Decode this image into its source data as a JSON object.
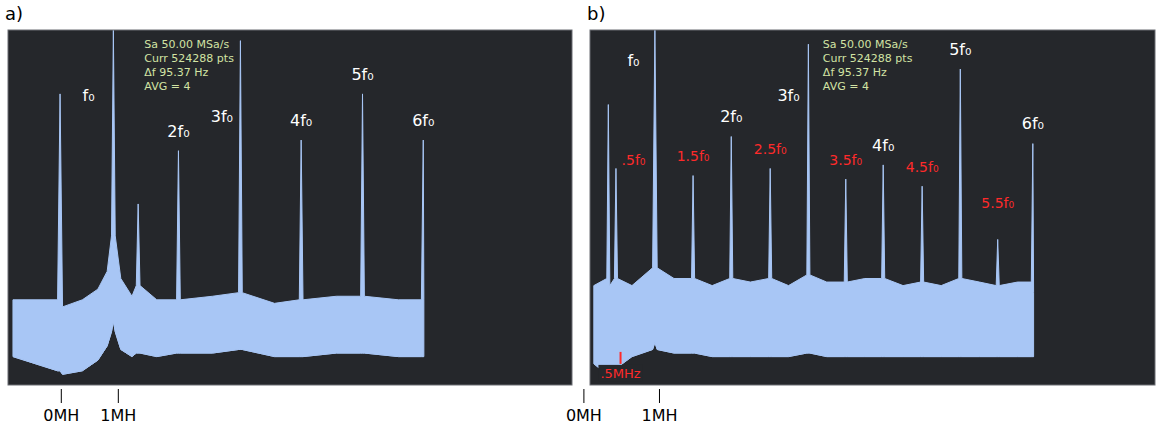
{
  "chart_data": [
    {
      "type": "line",
      "panel_label": "a)",
      "xlim": [
        -0.7,
        8.4
      ],
      "ylim": [
        0,
        100
      ],
      "tick_labels": false,
      "grid": false,
      "info": {
        "x": 1.5,
        "lines": [
          "Sa 50.00 MSa/s",
          "Curr 524288 pts",
          "Δf 95.37 Hz",
          "AVG = 4"
        ]
      },
      "series": [
        {
          "color": "#a8c6f5",
          "x": [
            -0.62,
            0.1,
            0.14,
            0.18,
            0.5,
            0.75,
            0.9,
            0.97,
            1.0,
            1.03,
            1.12,
            1.3,
            1.37,
            1.4,
            1.43,
            1.7,
            2.02,
            2.05,
            2.08,
            2.6,
            3.02,
            3.05,
            3.08,
            3.6,
            4.0,
            4.03,
            4.06,
            4.6,
            4.99,
            5.02,
            5.05,
            5.6,
            5.97,
            6.0,
            6.01
          ],
          "values": [
            24,
            24,
            82,
            22,
            24,
            27,
            32,
            42,
            100,
            42,
            30,
            25,
            28,
            51,
            28,
            24,
            24,
            66,
            24,
            25,
            26,
            97,
            26,
            23,
            24,
            69,
            24,
            25,
            25,
            82,
            25,
            24,
            24,
            69,
            24
          ],
          "low": [
            8,
            4,
            4,
            3,
            4,
            7,
            11,
            15,
            18,
            15,
            10,
            8,
            9,
            9,
            9,
            8,
            9,
            9,
            9,
            9,
            10,
            10,
            10,
            8,
            8,
            8,
            8,
            9,
            9,
            9,
            9,
            8,
            8,
            8,
            8
          ]
        }
      ],
      "annotations": [
        {
          "text": "f₀",
          "x": 0.6,
          "y": 80,
          "color": "#ffffff"
        },
        {
          "text": "2f₀",
          "x": 2.05,
          "y": 70,
          "color": "#ffffff"
        },
        {
          "text": "3f₀",
          "x": 2.75,
          "y": 74,
          "color": "#ffffff"
        },
        {
          "text": "4f₀",
          "x": 4.03,
          "y": 73,
          "color": "#ffffff"
        },
        {
          "text": "5f₀",
          "x": 5.02,
          "y": 86,
          "color": "#ffffff"
        },
        {
          "text": "6f₀",
          "x": 6.0,
          "y": 73,
          "color": "#ffffff"
        }
      ],
      "markers": [
        {
          "text": "0MH",
          "x": 0.16
        },
        {
          "text": "1MH",
          "x": 1.08
        }
      ],
      "notes": []
    },
    {
      "type": "line",
      "panel_label": "b)",
      "xlim": [
        0.15,
        7.55
      ],
      "ylim": [
        0,
        100
      ],
      "tick_labels": false,
      "grid": false,
      "info": {
        "x": 3.2,
        "lines": [
          "Sa 50.00 MSa/s",
          "Curr 524288 pts",
          "Δf 95.37 Hz",
          "AVG = 4"
        ]
      },
      "series": [
        {
          "color": "#a8c6f5",
          "x": [
            0.2,
            0.37,
            0.39,
            0.41,
            0.47,
            0.49,
            0.51,
            0.7,
            0.97,
            1.0,
            1.03,
            1.25,
            1.48,
            1.5,
            1.52,
            1.75,
            1.98,
            2.0,
            2.02,
            2.25,
            2.49,
            2.51,
            2.53,
            2.75,
            2.99,
            3.01,
            3.03,
            3.25,
            3.48,
            3.5,
            3.52,
            3.75,
            3.97,
            3.99,
            4.01,
            4.25,
            4.48,
            4.5,
            4.52,
            4.75,
            4.98,
            5.0,
            5.02,
            5.25,
            5.47,
            5.49,
            5.51,
            5.75,
            5.93,
            5.95,
            5.96
          ],
          "values": [
            28,
            30,
            79,
            28,
            30,
            61,
            30,
            28,
            33,
            100,
            33,
            30,
            30,
            59,
            30,
            28,
            30,
            70,
            30,
            29,
            30,
            61,
            30,
            28,
            31,
            96,
            31,
            29,
            29,
            58,
            29,
            30,
            30,
            62,
            30,
            28,
            29,
            56,
            29,
            28,
            30,
            89,
            30,
            29,
            28,
            41,
            28,
            29,
            29,
            68,
            26
          ],
          "low": [
            6,
            3,
            3,
            3,
            4,
            4,
            5,
            8,
            10,
            12,
            10,
            9,
            9,
            9,
            9,
            8,
            8,
            8,
            8,
            8,
            8,
            8,
            8,
            8,
            9,
            9,
            9,
            8,
            8,
            8,
            8,
            8,
            8,
            8,
            8,
            8,
            8,
            8,
            8,
            8,
            8,
            8,
            8,
            8,
            8,
            8,
            8,
            8,
            8,
            8,
            8
          ]
        }
      ],
      "annotations": [
        {
          "text": "f₀",
          "x": 0.72,
          "y": 90,
          "color": "#ffffff"
        },
        {
          "text": ".5f₀",
          "x": 0.72,
          "y": 62,
          "color": "#ff2a2a"
        },
        {
          "text": "1.5f₀",
          "x": 1.5,
          "y": 63,
          "color": "#ff2a2a"
        },
        {
          "text": "2f₀",
          "x": 2.0,
          "y": 74,
          "color": "#ffffff"
        },
        {
          "text": "2.5f₀",
          "x": 2.51,
          "y": 65,
          "color": "#ff2a2a"
        },
        {
          "text": "3f₀",
          "x": 2.75,
          "y": 80,
          "color": "#ffffff"
        },
        {
          "text": "3.5f₀",
          "x": 3.5,
          "y": 62,
          "color": "#ff2a2a"
        },
        {
          "text": "4f₀",
          "x": 3.99,
          "y": 66,
          "color": "#ffffff"
        },
        {
          "text": "4.5f₀",
          "x": 4.5,
          "y": 60,
          "color": "#ff2a2a"
        },
        {
          "text": "5f₀",
          "x": 5.0,
          "y": 93,
          "color": "#ffffff"
        },
        {
          "text": "5.5f₀",
          "x": 5.49,
          "y": 50,
          "color": "#ff2a2a"
        },
        {
          "text": "6f₀",
          "x": 5.95,
          "y": 72,
          "color": "#ffffff"
        }
      ],
      "markers": [
        {
          "text": "0MH",
          "x": 0.07
        },
        {
          "text": "1MH",
          "x": 1.06
        }
      ],
      "notes": [
        {
          "text": ".5MHz",
          "x": 0.55,
          "y": 2,
          "color": "#ff2a2a"
        }
      ]
    }
  ]
}
